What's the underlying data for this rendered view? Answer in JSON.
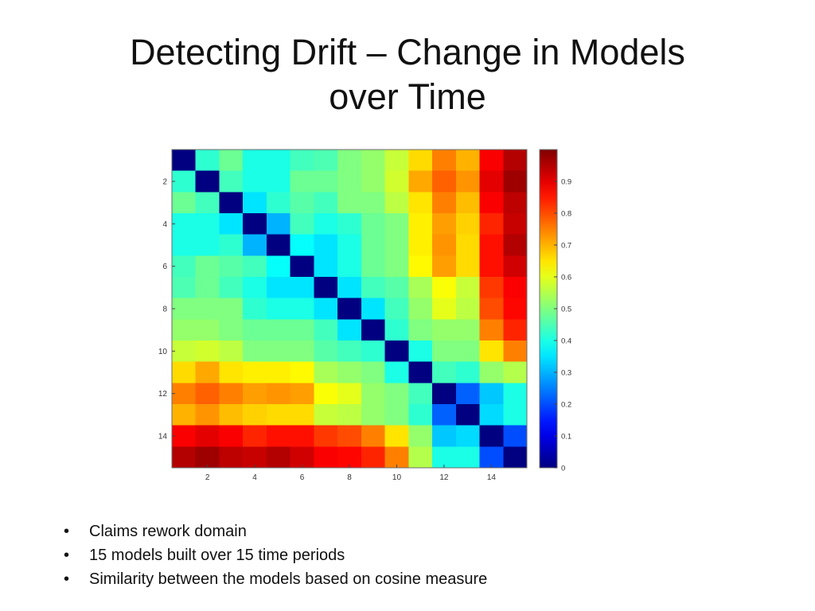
{
  "slide": {
    "title_lines": [
      "Detecting Drift – Change in Models",
      "over Time"
    ],
    "bullets": [
      "Claims rework domain",
      "15 models built over 15 time periods",
      "Similarity between the models based on cosine measure"
    ]
  },
  "chart_data": {
    "type": "heatmap",
    "title": "",
    "xlabel": "",
    "ylabel": "",
    "x_ticks": [
      "2",
      "4",
      "6",
      "8",
      "10",
      "12",
      "14"
    ],
    "y_ticks": [
      "2",
      "4",
      "6",
      "8",
      "10",
      "12",
      "14"
    ],
    "colorbar_ticks": [
      "0.9",
      "0.8",
      "0.7",
      "0.6",
      "0.5",
      "0.4",
      "0.3",
      "0.2",
      "0.1",
      "0"
    ],
    "colorbar_range": [
      0,
      1
    ],
    "colormap": "jet",
    "matrix": [
      [
        0.0,
        0.42,
        0.48,
        0.4,
        0.4,
        0.44,
        0.45,
        0.5,
        0.52,
        0.57,
        0.66,
        0.75,
        0.7,
        0.88,
        0.95
      ],
      [
        0.42,
        0.0,
        0.44,
        0.4,
        0.4,
        0.48,
        0.48,
        0.5,
        0.52,
        0.58,
        0.71,
        0.78,
        0.73,
        0.9,
        0.97
      ],
      [
        0.48,
        0.44,
        0.0,
        0.35,
        0.42,
        0.46,
        0.44,
        0.5,
        0.5,
        0.56,
        0.65,
        0.75,
        0.69,
        0.88,
        0.94
      ],
      [
        0.4,
        0.4,
        0.35,
        0.0,
        0.3,
        0.44,
        0.4,
        0.42,
        0.48,
        0.5,
        0.64,
        0.72,
        0.67,
        0.84,
        0.93
      ],
      [
        0.4,
        0.4,
        0.42,
        0.3,
        0.0,
        0.38,
        0.35,
        0.4,
        0.48,
        0.5,
        0.64,
        0.73,
        0.66,
        0.86,
        0.95
      ],
      [
        0.44,
        0.48,
        0.46,
        0.44,
        0.38,
        0.0,
        0.35,
        0.4,
        0.48,
        0.5,
        0.63,
        0.72,
        0.66,
        0.86,
        0.92
      ],
      [
        0.45,
        0.48,
        0.44,
        0.4,
        0.35,
        0.35,
        0.0,
        0.35,
        0.44,
        0.46,
        0.54,
        0.62,
        0.57,
        0.82,
        0.88
      ],
      [
        0.5,
        0.5,
        0.5,
        0.42,
        0.4,
        0.4,
        0.35,
        0.0,
        0.35,
        0.44,
        0.52,
        0.6,
        0.56,
        0.8,
        0.87
      ],
      [
        0.52,
        0.52,
        0.5,
        0.48,
        0.48,
        0.48,
        0.44,
        0.35,
        0.0,
        0.42,
        0.5,
        0.52,
        0.52,
        0.75,
        0.84
      ],
      [
        0.57,
        0.58,
        0.56,
        0.5,
        0.5,
        0.5,
        0.46,
        0.44,
        0.42,
        0.0,
        0.4,
        0.5,
        0.5,
        0.65,
        0.75
      ],
      [
        0.66,
        0.71,
        0.65,
        0.64,
        0.64,
        0.63,
        0.54,
        0.52,
        0.5,
        0.4,
        0.0,
        0.44,
        0.42,
        0.52,
        0.55
      ],
      [
        0.75,
        0.78,
        0.75,
        0.72,
        0.73,
        0.72,
        0.62,
        0.6,
        0.52,
        0.5,
        0.44,
        0.0,
        0.22,
        0.32,
        0.4
      ],
      [
        0.7,
        0.73,
        0.69,
        0.67,
        0.66,
        0.66,
        0.57,
        0.56,
        0.52,
        0.5,
        0.42,
        0.22,
        0.0,
        0.34,
        0.4
      ],
      [
        0.88,
        0.9,
        0.88,
        0.84,
        0.86,
        0.86,
        0.82,
        0.8,
        0.75,
        0.65,
        0.52,
        0.32,
        0.34,
        0.0,
        0.2
      ],
      [
        0.95,
        0.97,
        0.94,
        0.93,
        0.95,
        0.92,
        0.88,
        0.87,
        0.84,
        0.75,
        0.55,
        0.4,
        0.4,
        0.2,
        0.0
      ]
    ]
  }
}
